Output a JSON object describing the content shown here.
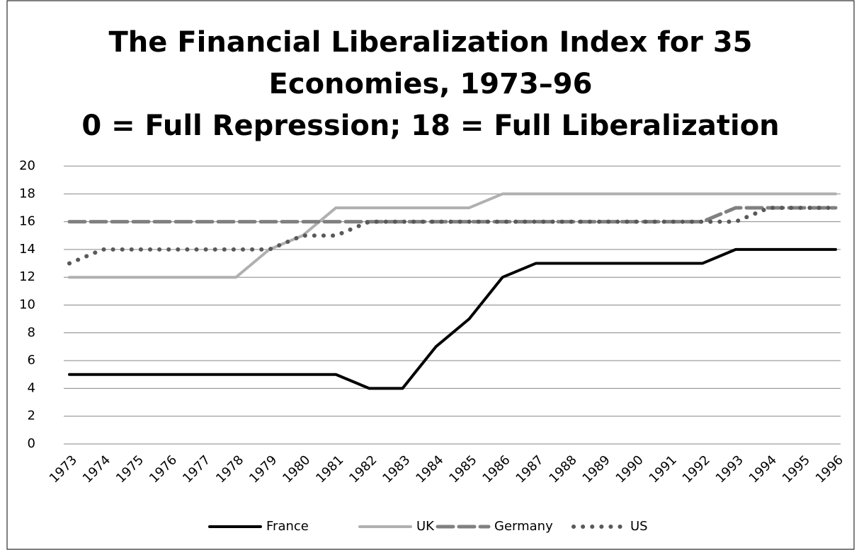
{
  "chart_data": {
    "type": "line",
    "title": [
      "The Financial Liberalization Index for 35",
      "Economies, 1973–96",
      "0 = Full Repression; 18 = Full Liberalization"
    ],
    "categories": [
      "1973",
      "1974",
      "1975",
      "1976",
      "1977",
      "1978",
      "1979",
      "1980",
      "1981",
      "1982",
      "1983",
      "1984",
      "1985",
      "1986",
      "1987",
      "1988",
      "1989",
      "1990",
      "1991",
      "1992",
      "1993",
      "1994",
      "1995",
      "1996"
    ],
    "series": [
      {
        "name": "France",
        "color": "#000000",
        "dash": "solid",
        "values": [
          5,
          5,
          5,
          5,
          5,
          5,
          5,
          5,
          5,
          4,
          4,
          7,
          9,
          12,
          13,
          13,
          13,
          13,
          13,
          13,
          14,
          14,
          14,
          14
        ]
      },
      {
        "name": "UK",
        "color": "#b0b0b0",
        "dash": "solid",
        "values": [
          12,
          12,
          12,
          12,
          12,
          12,
          14,
          15,
          17,
          17,
          17,
          17,
          17,
          18,
          18,
          18,
          18,
          18,
          18,
          18,
          18,
          18,
          18,
          18
        ]
      },
      {
        "name": "Germany",
        "color": "#808080",
        "dash": "dashed",
        "values": [
          16,
          16,
          16,
          16,
          16,
          16,
          16,
          16,
          16,
          16,
          16,
          16,
          16,
          16,
          16,
          16,
          16,
          16,
          16,
          16,
          17,
          17,
          17,
          17
        ]
      },
      {
        "name": "US",
        "color": "#595959",
        "dash": "dotted",
        "values": [
          13,
          14,
          14,
          14,
          14,
          14,
          14,
          15,
          15,
          16,
          16,
          16,
          16,
          16,
          16,
          16,
          16,
          16,
          16,
          16,
          16,
          17,
          17,
          17
        ]
      }
    ],
    "ylim": [
      0,
      20
    ],
    "yticks": [
      0,
      2,
      4,
      6,
      8,
      10,
      12,
      14,
      16,
      18,
      20
    ],
    "grid": true,
    "legend": "bottom"
  }
}
